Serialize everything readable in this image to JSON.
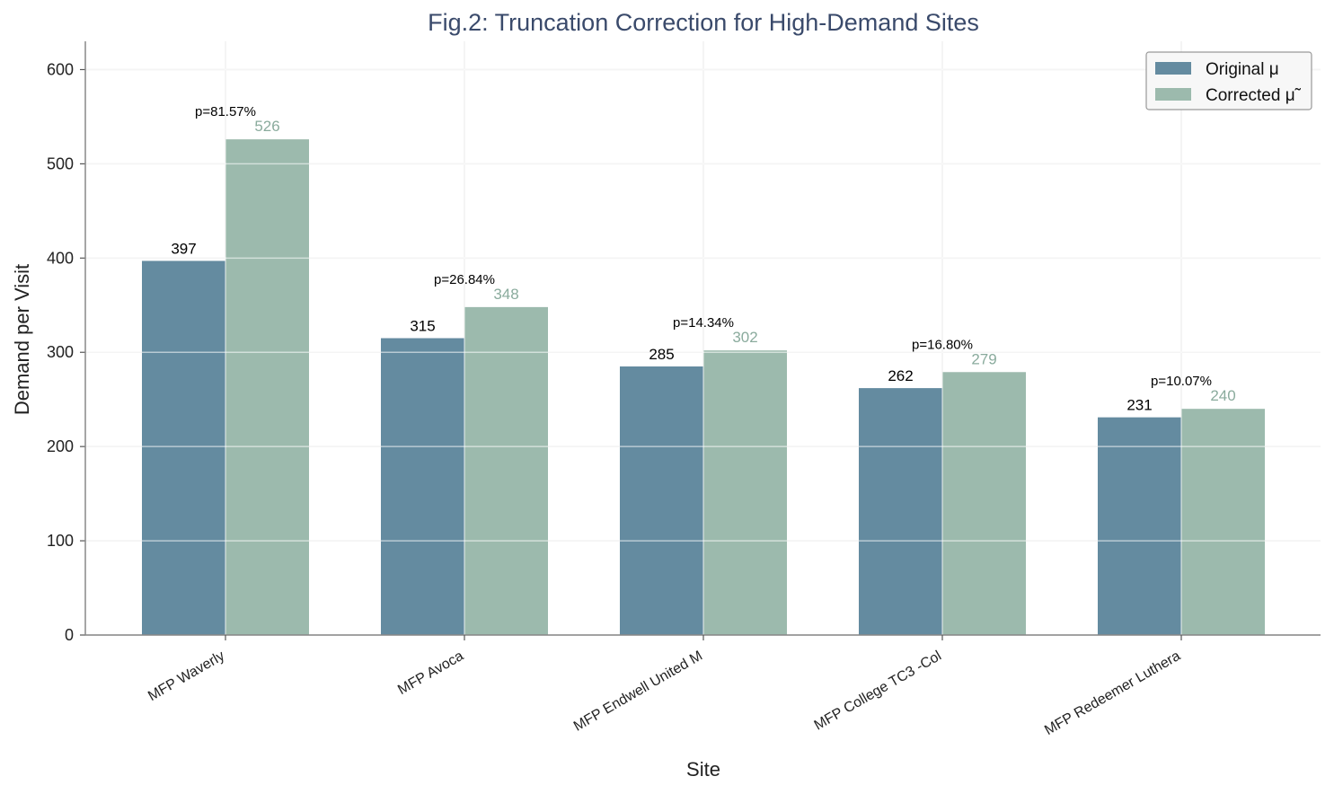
{
  "chart_data": {
    "type": "bar",
    "title": "Fig.2: Truncation Correction for High-Demand Sites",
    "xlabel": "Site",
    "ylabel": "Demand per Visit",
    "ylim": [
      0,
      630
    ],
    "yticks": [
      0,
      100,
      200,
      300,
      400,
      500,
      600
    ],
    "grid": true,
    "legend_position": "top-right",
    "categories": [
      "MFP Waverly",
      "MFP Avoca",
      "MFP Endwell United M",
      "MFP College TC3 -Col",
      "MFP Redeemer Luthera"
    ],
    "series": [
      {
        "name": "Original μ",
        "values": [
          397,
          315,
          285,
          262,
          231
        ],
        "labels": [
          "397",
          "315",
          "285",
          "262",
          "231"
        ],
        "color": "#648ba0"
      },
      {
        "name": "Corrected μ̃",
        "values": [
          526,
          348,
          302,
          279,
          240
        ],
        "labels": [
          "526",
          "348",
          "302",
          "279",
          "240"
        ],
        "color": "#9cbaad"
      }
    ],
    "annotations": [
      "p=81.57%",
      "p=26.84%",
      "p=14.34%",
      "p=16.80%",
      "p=10.07%"
    ]
  }
}
